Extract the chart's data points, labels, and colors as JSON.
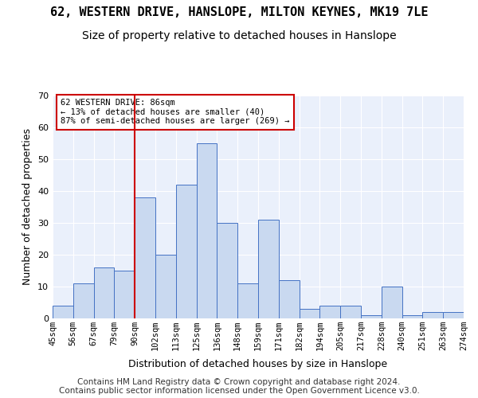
{
  "title1": "62, WESTERN DRIVE, HANSLOPE, MILTON KEYNES, MK19 7LE",
  "title2": "Size of property relative to detached houses in Hanslope",
  "xlabel": "Distribution of detached houses by size in Hanslope",
  "ylabel": "Number of detached properties",
  "categories": [
    "45sqm",
    "56sqm",
    "67sqm",
    "79sqm",
    "90sqm",
    "102sqm",
    "113sqm",
    "125sqm",
    "136sqm",
    "148sqm",
    "159sqm",
    "171sqm",
    "182sqm",
    "194sqm",
    "205sqm",
    "217sqm",
    "228sqm",
    "240sqm",
    "251sqm",
    "263sqm",
    "274sqm"
  ],
  "bar_heights": [
    4,
    11,
    16,
    15,
    38,
    20,
    42,
    55,
    30,
    11,
    31,
    12,
    3,
    4,
    4,
    1,
    10,
    1,
    2,
    2
  ],
  "bar_color": "#c9d9f0",
  "bar_edgecolor": "#4472c4",
  "vline_pos": 3.5,
  "vline_color": "#cc0000",
  "annotation_text": "62 WESTERN DRIVE: 86sqm\n← 13% of detached houses are smaller (40)\n87% of semi-detached houses are larger (269) →",
  "annotation_box_color": "#ffffff",
  "annotation_box_edgecolor": "#cc0000",
  "ylim": [
    0,
    70
  ],
  "yticks": [
    0,
    10,
    20,
    30,
    40,
    50,
    60,
    70
  ],
  "footer1": "Contains HM Land Registry data © Crown copyright and database right 2024.",
  "footer2": "Contains public sector information licensed under the Open Government Licence v3.0.",
  "plot_background": "#eaf0fb",
  "title1_fontsize": 11,
  "title2_fontsize": 10,
  "xlabel_fontsize": 9,
  "ylabel_fontsize": 9,
  "footer_fontsize": 7.5
}
